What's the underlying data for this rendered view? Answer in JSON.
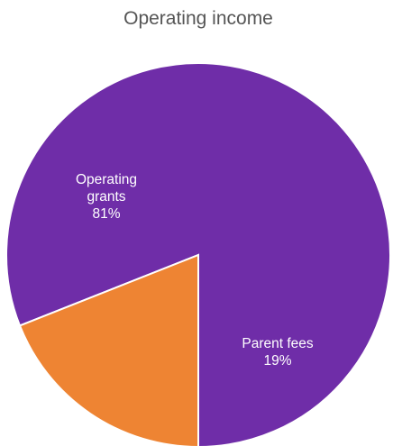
{
  "chart_data": {
    "type": "pie",
    "title": "Operating income",
    "slices": [
      {
        "label_lines": [
          "Operating",
          "grants",
          "81%"
        ],
        "value": 81,
        "color": "#6f2da8"
      },
      {
        "label_lines": [
          "Parent fees",
          "19%"
        ],
        "value": 19,
        "color": "#ee8433"
      }
    ]
  }
}
